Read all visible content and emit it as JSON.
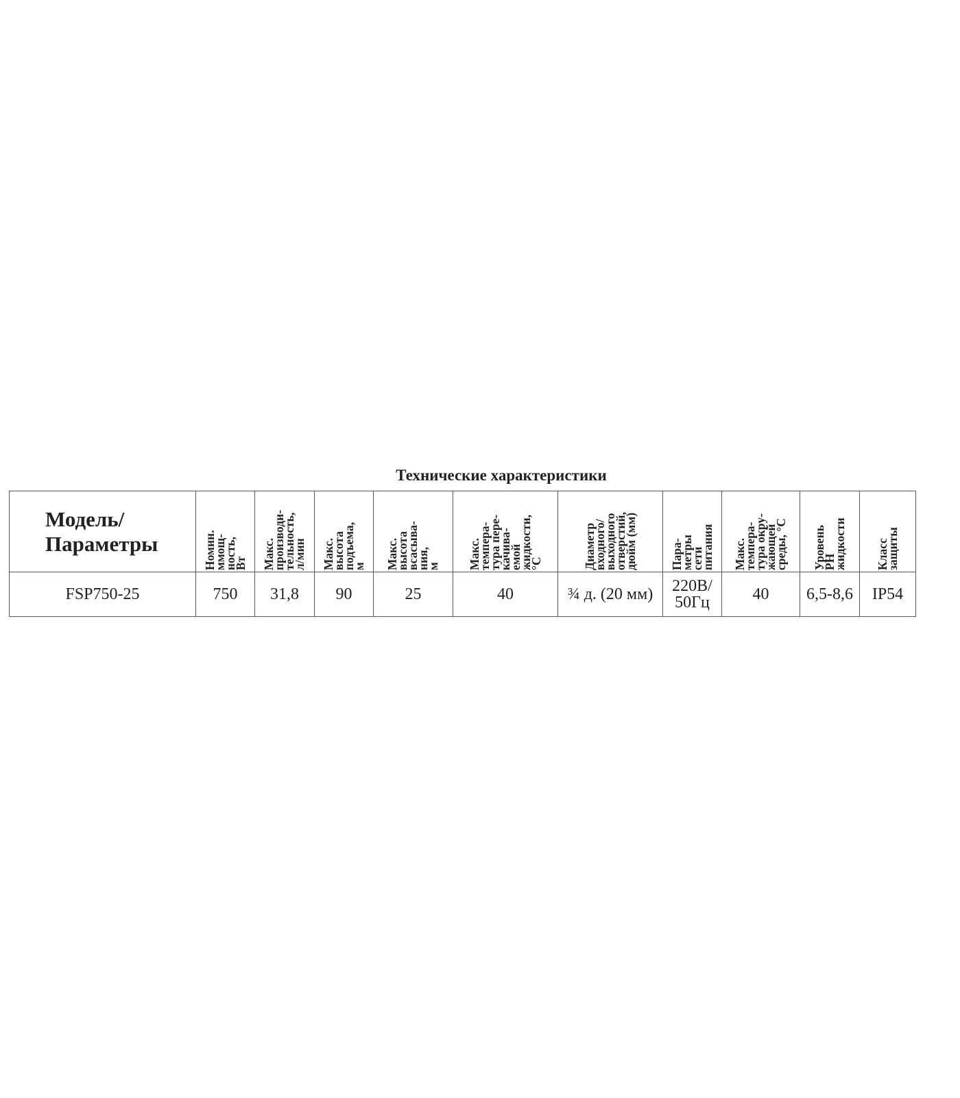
{
  "title": "Технические характеристики",
  "model_header": [
    "Модель/",
    "Параметры"
  ],
  "columns": [
    [
      "Номин.",
      "ммощ-",
      "ность,",
      "Вт"
    ],
    [
      "Макс.",
      "производи-",
      "тельность,",
      "л/мин"
    ],
    [
      "Макс.",
      "высота",
      "подъема,",
      "м"
    ],
    [
      "Макс.",
      "высота",
      "всасыва-",
      "ния,",
      "м"
    ],
    [
      "Макс.",
      "темпера-",
      "тура пере-",
      "качива-",
      "емой",
      "жидкости,",
      "°С"
    ],
    [
      "Диаметр",
      "входного/",
      "выходного",
      "отверстий,",
      "дюйм (мм)"
    ],
    [
      "Пара-",
      "метры",
      "сети",
      "питания"
    ],
    [
      "Макс.",
      "темпера-",
      "тура окру-",
      "жающей",
      "среды, °С"
    ],
    [
      "Уровень",
      "РН",
      "жидкости"
    ],
    [
      "Класс",
      "защиты"
    ]
  ],
  "row": {
    "model": "FSP750-25",
    "values": [
      "750",
      "31,8",
      "90",
      "25",
      "40",
      "¾ д. (20 мм)",
      [
        "220В/",
        "50Гц"
      ],
      "40",
      "6,5-8,6",
      "IP54"
    ]
  }
}
